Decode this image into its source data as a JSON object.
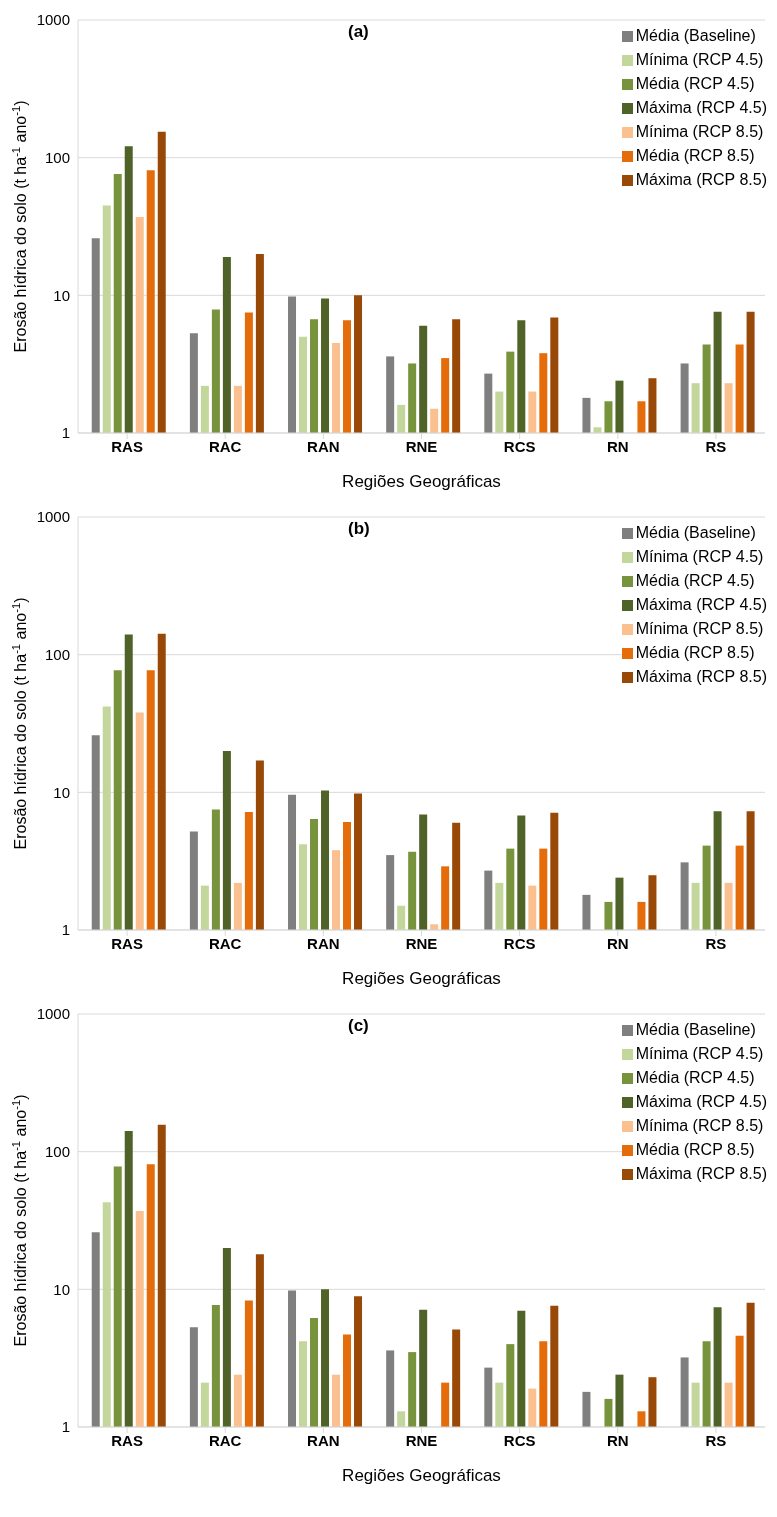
{
  "chart_data": [
    {
      "type": "bar",
      "title": "(a)",
      "xlabel": "Regiões Geográficas",
      "ylabel": "Erosão hídrica do solo (t ha$^{-1}$ ano$^{-1}$)",
      "categories": [
        "RAS",
        "RAC",
        "RAN",
        "RNE",
        "RCS",
        "RN",
        "RS"
      ],
      "log": "y",
      "ylim": [
        1,
        1000
      ],
      "yticks": [
        1,
        10,
        100,
        1000
      ],
      "grid": "y",
      "legend": "top right",
      "series": [
        {
          "name": "Média (Baseline)",
          "color": "#7f7f7f",
          "values": [
            26,
            5.3,
            9.8,
            3.6,
            2.7,
            1.8,
            3.2
          ]
        },
        {
          "name": "Mínima (RCP 4.5)",
          "color": "#c3d69b",
          "values": [
            45,
            2.2,
            5.0,
            1.6,
            2.0,
            1.1,
            2.3
          ]
        },
        {
          "name": "Média (RCP 4.5)",
          "color": "#77933c",
          "values": [
            76,
            7.9,
            6.7,
            3.2,
            3.9,
            1.7,
            4.4
          ]
        },
        {
          "name": "Máxima (RCP 4.5)",
          "color": "#4f6228",
          "values": [
            121,
            19,
            9.5,
            6.0,
            6.6,
            2.4,
            7.6
          ]
        },
        {
          "name": "Mínima (RCP 8.5)",
          "color": "#fac090",
          "values": [
            37,
            2.2,
            4.5,
            1.5,
            2.0,
            null,
            2.3
          ]
        },
        {
          "name": "Média (RCP 8.5)",
          "color": "#e46c0a",
          "values": [
            81,
            7.5,
            6.6,
            3.5,
            3.8,
            1.7,
            4.4
          ]
        },
        {
          "name": "Máxima (RCP 8.5)",
          "color": "#984807",
          "values": [
            154,
            20,
            10,
            6.7,
            6.9,
            2.5,
            7.6
          ]
        }
      ]
    },
    {
      "type": "bar",
      "title": "(b)",
      "xlabel": "Regiões Geográficas",
      "ylabel": "Erosão hídrica do solo (t ha$^{-1}$ ano$^{-1}$)",
      "categories": [
        "RAS",
        "RAC",
        "RAN",
        "RNE",
        "RCS",
        "RN",
        "RS"
      ],
      "log": "y",
      "ylim": [
        1,
        1000
      ],
      "yticks": [
        1,
        10,
        100,
        1000
      ],
      "grid": "y",
      "legend": "top right",
      "series": [
        {
          "name": "Média (Baseline)",
          "color": "#7f7f7f",
          "values": [
            26,
            5.2,
            9.6,
            3.5,
            2.7,
            1.8,
            3.1
          ]
        },
        {
          "name": "Mínima (RCP 4.5)",
          "color": "#c3d69b",
          "values": [
            42,
            2.1,
            4.2,
            1.5,
            2.2,
            null,
            2.2
          ]
        },
        {
          "name": "Média (RCP 4.5)",
          "color": "#77933c",
          "values": [
            77,
            7.5,
            6.4,
            3.7,
            3.9,
            1.6,
            4.1
          ]
        },
        {
          "name": "Máxima (RCP 4.5)",
          "color": "#4f6228",
          "values": [
            140,
            20,
            10.3,
            6.9,
            6.8,
            2.4,
            7.3
          ]
        },
        {
          "name": "Mínima (RCP 8.5)",
          "color": "#fac090",
          "values": [
            38,
            2.2,
            3.8,
            1.1,
            2.1,
            null,
            2.2
          ]
        },
        {
          "name": "Média (RCP 8.5)",
          "color": "#e46c0a",
          "values": [
            77,
            7.2,
            6.1,
            2.9,
            3.9,
            1.6,
            4.1
          ]
        },
        {
          "name": "Máxima (RCP 8.5)",
          "color": "#984807",
          "values": [
            142,
            17,
            9.8,
            6.0,
            7.1,
            2.5,
            7.3
          ]
        }
      ]
    },
    {
      "type": "bar",
      "title": "(c)",
      "xlabel": "Regiões Geográficas",
      "ylabel": "Erosão hídrica do solo (t ha$^{-1}$ ano$^{-1}$)",
      "categories": [
        "RAS",
        "RAC",
        "RAN",
        "RNE",
        "RCS",
        "RN",
        "RS"
      ],
      "log": "y",
      "ylim": [
        1,
        1000
      ],
      "yticks": [
        1,
        10,
        100,
        1000
      ],
      "grid": "y",
      "legend": "top right",
      "series": [
        {
          "name": "Média (Baseline)",
          "color": "#7f7f7f",
          "values": [
            26,
            5.3,
            9.8,
            3.6,
            2.7,
            1.8,
            3.2
          ]
        },
        {
          "name": "Mínima (RCP 4.5)",
          "color": "#c3d69b",
          "values": [
            43,
            2.1,
            4.2,
            1.3,
            2.1,
            null,
            2.1
          ]
        },
        {
          "name": "Média (RCP 4.5)",
          "color": "#77933c",
          "values": [
            78,
            7.7,
            6.2,
            3.5,
            4.0,
            1.6,
            4.2
          ]
        },
        {
          "name": "Máxima (RCP 4.5)",
          "color": "#4f6228",
          "values": [
            141,
            20,
            10,
            7.1,
            7.0,
            2.4,
            7.4
          ]
        },
        {
          "name": "Mínima (RCP 8.5)",
          "color": "#fac090",
          "values": [
            37,
            2.4,
            2.4,
            null,
            1.9,
            null,
            2.1
          ]
        },
        {
          "name": "Média (RCP 8.5)",
          "color": "#e46c0a",
          "values": [
            81,
            8.3,
            4.7,
            2.1,
            4.2,
            1.3,
            4.6
          ]
        },
        {
          "name": "Máxima (RCP 8.5)",
          "color": "#984807",
          "values": [
            157,
            18,
            8.9,
            5.1,
            7.6,
            2.3,
            8.0
          ]
        }
      ]
    }
  ]
}
